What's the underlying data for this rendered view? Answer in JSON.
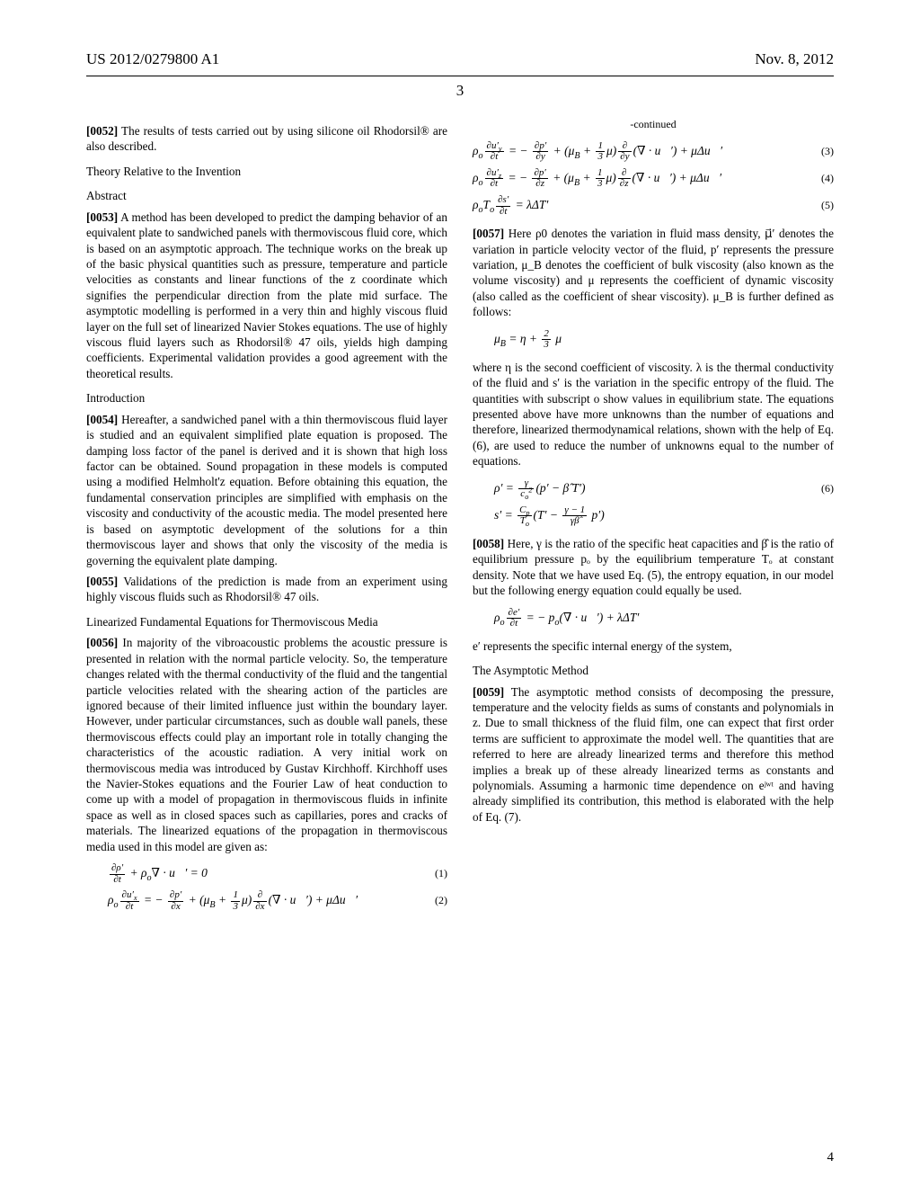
{
  "header": {
    "left": "US 2012/0279800 A1",
    "right": "Nov. 8, 2012",
    "page_number_top": "3",
    "page_number_bottom": "4"
  },
  "left_column": {
    "p0052_label": "[0052]",
    "p0052": " The results of tests carried out by using silicone oil Rhodorsil® are also described.",
    "theory_heading": "Theory Relative to the Invention",
    "abstract_heading": "Abstract",
    "p0053_label": "[0053]",
    "p0053": " A method has been developed to predict the damping behavior of an equivalent plate to sandwiched panels with thermoviscous fluid core, which is based on an asymptotic approach. The technique works on the break up of the basic physical quantities such as pressure, temperature and particle velocities as constants and linear functions of the z coordinate which signifies the perpendicular direction from the plate mid surface. The asymptotic modelling is performed in a very thin and highly viscous fluid layer on the full set of linearized Navier Stokes equations. The use of highly viscous fluid layers such as Rhodorsil® 47 oils, yields high damping coefficients. Experimental validation provides a good agreement with the theoretical results.",
    "intro_heading": "Introduction",
    "p0054_label": "[0054]",
    "p0054": " Hereafter, a sandwiched panel with a thin thermoviscous fluid layer is studied and an equivalent simplified plate equation is proposed. The damping loss factor of the panel is derived and it is shown that high loss factor can be obtained. Sound propagation in these models is computed using a modified Helmholt'z equation. Before obtaining this equation, the fundamental conservation principles are simplified with emphasis on the viscosity and conductivity of the acoustic media. The model presented here is based on asymptotic development of the solutions for a thin thermoviscous layer and shows that only the viscosity of the media is governing the equivalent plate damping.",
    "p0055_label": "[0055]",
    "p0055": " Validations of the prediction is made from an experiment using highly viscous fluids such as Rhodorsil® 47 oils.",
    "linearized_heading": "Linearized Fundamental Equations for Thermoviscous Media",
    "p0056_label": "[0056]",
    "p0056": " In majority of the vibroacoustic problems the acoustic pressure is presented in relation with the normal particle velocity. So, the temperature changes related with the thermal conductivity of the fluid and the tangential particle velocities related with the shearing action of the particles are ignored because of their limited influence just within the boundary layer. However, under particular circumstances, such as double wall panels, these thermoviscous effects could play an important role in totally changing the characteristics of the acoustic radiation. A very initial work on thermoviscous media was introduced by Gustav Kirchhoff. Kirchhoff uses the Navier-Stokes equations and the Fourier Law of heat conduction to come up with a model of propagation in thermoviscous fluids in infinite space as well as in closed spaces such as capillaries, pores and cracks of materials. The linearized equations of the propagation in thermoviscous media used in this model are given as:",
    "eq1": "∂ρ′/∂t + ρₒ∇·u⃗′ = 0",
    "eq1_num": "(1)",
    "eq2": "ρₒ ∂uₓ′/∂t = − ∂p′/∂x + (μ_B + ⅓μ) ∂/∂x (∇·u⃗′) + μΔu⃗′",
    "eq2_num": "(2)"
  },
  "right_column": {
    "continued": "-continued",
    "eq3": "ρₒ ∂u_y′/∂t = − ∂p′/∂y + (μ_B + ⅓μ) ∂/∂y (∇·u⃗′) + μΔu⃗′",
    "eq3_num": "(3)",
    "eq4": "ρₒ ∂u_z′/∂t = − ∂p′/∂z + (μ_B + ⅓μ) ∂/∂z (∇·u⃗′) + μΔu⃗′",
    "eq4_num": "(4)",
    "eq5": "ρₒTₒ ∂s′/∂t = λΔT′",
    "eq5_num": "(5)",
    "p0057_label": "[0057]",
    "p0057a": " Here ρ0 denotes the variation in fluid mass density, ",
    "p0057_vec": "μ⃗′",
    "p0057b": " denotes the variation in particle velocity vector of the fluid, p′ represents the pressure variation, μ_B denotes the coefficient of bulk viscosity (also known as the volume viscosity) and μ represents the coefficient of dynamic viscosity (also called as the coefficient of shear viscosity). μ_B is further defined as follows:",
    "muB_eq": "μ_B = η + ⅔ μ",
    "where_eta": "where η is the second coefficient of viscosity. λ is the thermal conductivity of the fluid and s′ is the variation in the specific entropy of the fluid. The quantities with subscript o show values in equilibrium state. The equations presented above have more unknowns than the number of equations and therefore, linearized thermodynamical relations, shown with the help of Eq. (6), are used to reduce the number of unknowns equal to the number of equations.",
    "eq6a": "ρ′ = (γ / cₒ²)(p′ − β̂ T′)",
    "eq6_num": "(6)",
    "eq6b": "s′ = (C_p / Tₒ)(T′ − ((γ−1)/(γβ̂)) p′)",
    "p0058_label": "[0058]",
    "p0058": " Here, γ is the ratio of the specific heat capacities and β̂ is the ratio of equilibrium pressure pₒ by the equilibrium temperature Tₒ at constant density. Note that we have used Eq. (5), the entropy equation, in our model but the following energy equation could equally be used.",
    "energy_eq": "ρₒ ∂e′/∂t = − pₒ(∇·u⃗′) + λΔT′",
    "e_prime": "e′ represents the specific internal energy of the system,",
    "asymptotic_heading": "The Asymptotic Method",
    "p0059_label": "[0059]",
    "p0059": " The asymptotic method consists of decomposing the pressure, temperature and the velocity fields as sums of constants and polynomials in z. Due to small thickness of the fluid film, one can expect that first order terms are sufficient to approximate the model well. The quantities that are referred to here are already linearized terms and therefore this method implies a break up of these already linearized terms as constants and polynomials. Assuming a harmonic time dependence on eʲʷᵗ and having already simplified its contribution, this method is elaborated with the help of Eq. (7)."
  }
}
